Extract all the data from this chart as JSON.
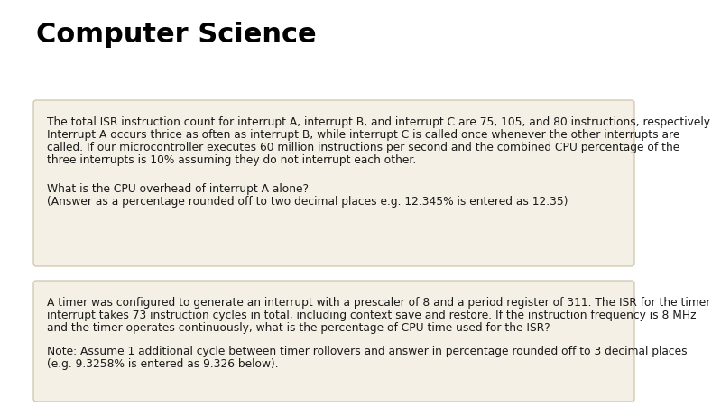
{
  "title": "Computer Science",
  "title_fontsize": 22,
  "title_fontweight": "bold",
  "bg_color": "#ffffff",
  "box_bg": "#f5f0e6",
  "box_border": "#c8bfa0",
  "box1_text_line1": "The total ISR instruction count for interrupt A, interrupt B, and interrupt C are 75, 105, and 80 instructions, respectively.",
  "box1_text_line2": "Interrupt A occurs thrice as often as interrupt B, while interrupt C is called once whenever the other interrupts are",
  "box1_text_line3": "called. If our microcontroller executes 60 million instructions per second and the combined CPU percentage of the",
  "box1_text_line4": "three interrupts is 10% assuming they do not interrupt each other.",
  "box1_q_line1": "What is the CPU overhead of interrupt A alone?",
  "box1_q_line2": "(Answer as a percentage rounded off to two decimal places e.g. 12.345% is entered as 12.35)",
  "box2_text_line1": "A timer was configured to generate an interrupt with a prescaler of 8 and a period register of 311. The ISR for the timer",
  "box2_text_line2": "interrupt takes 73 instruction cycles in total, including context save and restore. If the instruction frequency is 8 MHz",
  "box2_text_line3": "and the timer operates continuously, what is the percentage of CPU time used for the ISR?",
  "box2_note_line1": "Note: Assume 1 additional cycle between timer rollovers and answer in percentage rounded off to 3 decimal places",
  "box2_note_line2": "(e.g. 9.3258% is entered as 9.326 below).",
  "text_fontsize": 8.8,
  "text_color": "#1a1a1a",
  "lh": 14
}
